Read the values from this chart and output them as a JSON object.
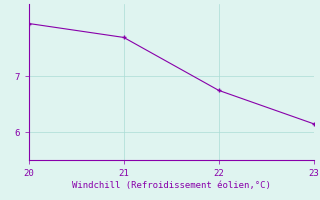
{
  "x": [
    20,
    21,
    22,
    23
  ],
  "y": [
    7.95,
    7.7,
    6.75,
    6.15
  ],
  "xlim": [
    20,
    23
  ],
  "ylim": [
    5.5,
    8.3
  ],
  "yticks": [
    6,
    7
  ],
  "xticks": [
    20,
    21,
    22,
    23
  ],
  "line_color": "#8800aa",
  "marker_color": "#8800aa",
  "bg_color": "#dff4f0",
  "grid_color": "#aaddd5",
  "xlabel": "Windchill (Refroidissement éolien,°C)",
  "xlabel_color": "#8800aa",
  "tick_color": "#8800aa",
  "axis_color": "#8800aa",
  "font_size": 6.5,
  "xlabel_fontsize": 6.5,
  "line_width": 0.8,
  "marker_size": 2.5
}
